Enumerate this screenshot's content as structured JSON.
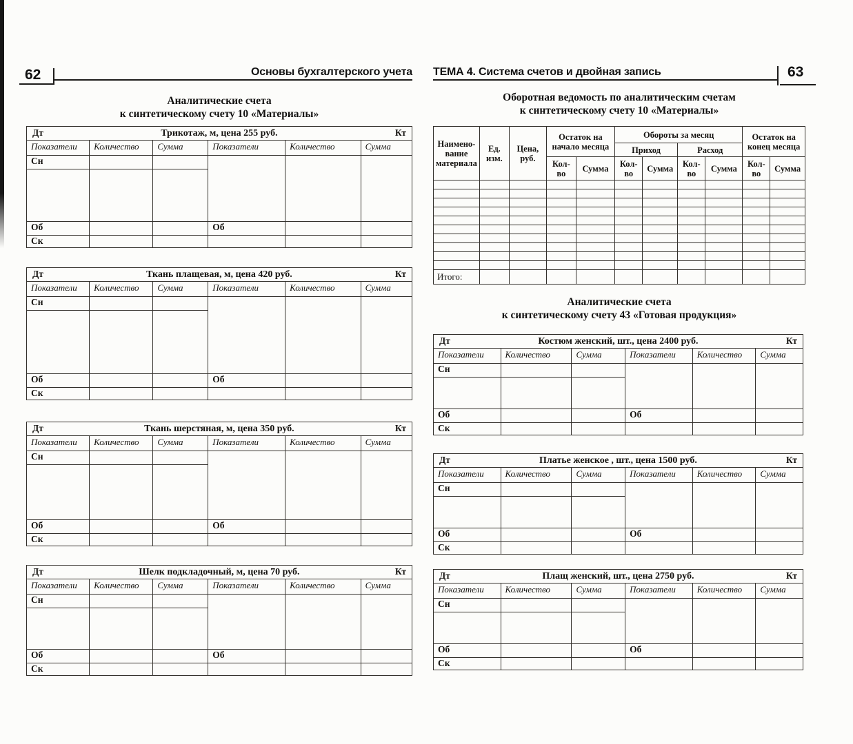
{
  "shared": {
    "debit_label": "Дт",
    "credit_label": "Кт",
    "col_indicators": "Показатели",
    "col_quantity": "Количество",
    "col_amount": "Сумма",
    "row_opening_balance": "Сн",
    "row_turnover": "Об",
    "row_closing_balance": "Ск"
  },
  "left_page": {
    "page_number": "62",
    "running_head": "Основы бухгалтерского учета",
    "section_title": {
      "line1": "Аналитические счета",
      "line2": "к синтетическому счету 10 «Материалы»"
    },
    "account_tables": [
      {
        "title": "Трикотаж, м,  цена 255 руб."
      },
      {
        "title": "Ткань плащевая,  м,  цена 420 руб."
      },
      {
        "title": "Ткань шерстяная, м,  цена 350 руб."
      },
      {
        "title": "Шелк подкладочный, м,  цена 70 руб."
      }
    ]
  },
  "right_page": {
    "page_number": "63",
    "running_head": "ТЕМА 4. Система счетов и двойная запись",
    "turnover_sheet": {
      "title": {
        "line1": "Оборотная ведомость по аналитическим счетам",
        "line2": "к синтетическому счету 10 «Материалы»"
      },
      "header": {
        "material": "Наимено- вание материала",
        "unit": "Ед. изм.",
        "price": "Цена, руб.",
        "opening_balance": "Остаток на начало месяца",
        "monthly_turnover": "Обороты за месяц",
        "receipt": "Приход",
        "expense": "Расход",
        "closing_balance": "Остаток на конец месяца",
        "qty": "Кол- во",
        "amount": "Сумма"
      },
      "empty_row_count": 10,
      "columns_count": 11,
      "total_label": "Итого:"
    },
    "section_title": {
      "line1": "Аналитические счета",
      "line2": "к синтетическому счету 43 «Готовая продукция»"
    },
    "account_tables": [
      {
        "title": "Костюм женский, шт., цена 2400 руб."
      },
      {
        "title": "Платье женское , шт.,  цена 1500 руб."
      },
      {
        "title": "Плащ женский, шт., цена 2750 руб."
      }
    ]
  }
}
